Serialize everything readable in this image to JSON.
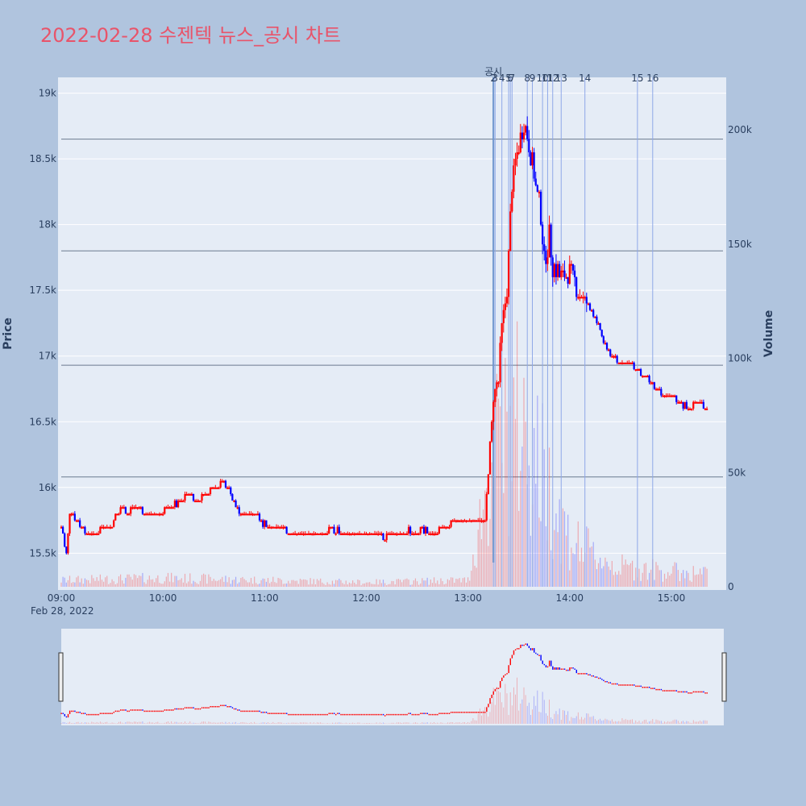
{
  "title": "2022-02-28 수젠텍 뉴스_공시 차트",
  "colors": {
    "background": "#b0c4de",
    "plot_bg": "#e5ecf6",
    "title": "#e8546a",
    "up": "#ff0000",
    "down": "#0000ff",
    "news_line": "#8fa8e8",
    "disclosure_line": "#4a7fb0"
  },
  "chart_data": {
    "type": "candlestick",
    "date_label": "Feb 28, 2022",
    "y_label": "Price",
    "y2_label": "Volume",
    "y_range": [
      15220,
      19120
    ],
    "y2_range": [
      0,
      223000
    ],
    "x_range": [
      "09:00",
      "15:30"
    ],
    "y_ticks": [
      15500,
      16000,
      16500,
      17000,
      17500,
      18000,
      18500,
      19000
    ],
    "y_tick_labels": [
      "15.5k",
      "16k",
      "16.5k",
      "17k",
      "17.5k",
      "18k",
      "18.5k",
      "19k"
    ],
    "y2_ticks": [
      0,
      50000,
      100000,
      150000,
      200000
    ],
    "y2_tick_labels": [
      "0",
      "50k",
      "100k",
      "150k",
      "200k"
    ],
    "x_ticks": [
      "09:00",
      "10:00",
      "11:00",
      "12:00",
      "13:00",
      "14:00",
      "15:00"
    ],
    "disclosure": {
      "label": "공시",
      "time": "13:15"
    },
    "news_markers": [
      {
        "label": "2",
        "time": "13:15"
      },
      {
        "label": "3",
        "time": "13:16"
      },
      {
        "label": "4",
        "time": "13:20"
      },
      {
        "label": "5",
        "time": "13:24"
      },
      {
        "label": "6",
        "time": "13:25"
      },
      {
        "label": "7",
        "time": "13:26"
      },
      {
        "label": "8",
        "time": "13:35"
      },
      {
        "label": "9",
        "time": "13:38"
      },
      {
        "label": "10",
        "time": "13:44"
      },
      {
        "label": "11",
        "time": "13:47"
      },
      {
        "label": "12",
        "time": "13:50"
      },
      {
        "label": "13",
        "time": "13:55"
      },
      {
        "label": "14",
        "time": "14:09"
      },
      {
        "label": "15",
        "time": "14:40"
      },
      {
        "label": "16",
        "time": "14:49"
      }
    ],
    "price_path": [
      [
        "09:00",
        15700
      ],
      [
        "09:03",
        15500
      ],
      [
        "09:05",
        15800
      ],
      [
        "09:10",
        15750
      ],
      [
        "09:15",
        15650
      ],
      [
        "09:20",
        15650
      ],
      [
        "09:25",
        15700
      ],
      [
        "09:30",
        15720
      ],
      [
        "09:35",
        15850
      ],
      [
        "09:40",
        15820
      ],
      [
        "09:45",
        15850
      ],
      [
        "09:50",
        15800
      ],
      [
        "09:55",
        15800
      ],
      [
        "10:00",
        15820
      ],
      [
        "10:05",
        15850
      ],
      [
        "10:10",
        15900
      ],
      [
        "10:15",
        15950
      ],
      [
        "10:20",
        15900
      ],
      [
        "10:25",
        15950
      ],
      [
        "10:30",
        16000
      ],
      [
        "10:35",
        16050
      ],
      [
        "10:40",
        15950
      ],
      [
        "10:45",
        15800
      ],
      [
        "10:50",
        15800
      ],
      [
        "10:55",
        15800
      ],
      [
        "11:00",
        15720
      ],
      [
        "11:05",
        15700
      ],
      [
        "11:10",
        15700
      ],
      [
        "11:15",
        15650
      ],
      [
        "11:20",
        15650
      ],
      [
        "11:30",
        15650
      ],
      [
        "11:40",
        15680
      ],
      [
        "11:50",
        15650
      ],
      [
        "12:00",
        15650
      ],
      [
        "12:10",
        15620
      ],
      [
        "12:20",
        15650
      ],
      [
        "12:30",
        15680
      ],
      [
        "12:40",
        15650
      ],
      [
        "12:50",
        15720
      ],
      [
        "13:00",
        15750
      ],
      [
        "13:05",
        15760
      ],
      [
        "13:10",
        15750
      ],
      [
        "13:15",
        16700
      ],
      [
        "13:18",
        16800
      ],
      [
        "13:20",
        17200
      ],
      [
        "13:23",
        17500
      ],
      [
        "13:26",
        18300
      ],
      [
        "13:30",
        18600
      ],
      [
        "13:33",
        18800
      ],
      [
        "13:36",
        18600
      ],
      [
        "13:40",
        18300
      ],
      [
        "13:43",
        18100
      ],
      [
        "13:45",
        17700
      ],
      [
        "13:48",
        17900
      ],
      [
        "13:50",
        17700
      ],
      [
        "13:55",
        17600
      ],
      [
        "14:00",
        17650
      ],
      [
        "14:05",
        17500
      ],
      [
        "14:10",
        17400
      ],
      [
        "14:15",
        17300
      ],
      [
        "14:20",
        17100
      ],
      [
        "14:25",
        17000
      ],
      [
        "14:30",
        16950
      ],
      [
        "14:35",
        16950
      ],
      [
        "14:40",
        16900
      ],
      [
        "14:45",
        16850
      ],
      [
        "14:50",
        16750
      ],
      [
        "14:55",
        16700
      ],
      [
        "15:00",
        16700
      ],
      [
        "15:05",
        16650
      ],
      [
        "15:10",
        16600
      ],
      [
        "15:15",
        16650
      ],
      [
        "15:20",
        16600
      ]
    ],
    "volume_levels": [
      [
        "09:00",
        3000
      ],
      [
        "10:00",
        4000
      ],
      [
        "11:00",
        3000
      ],
      [
        "12:00",
        2000
      ],
      [
        "13:00",
        3000
      ],
      [
        "13:15",
        60000
      ],
      [
        "13:30",
        75000
      ],
      [
        "13:40",
        60000
      ],
      [
        "13:50",
        40000
      ],
      [
        "14:00",
        22000
      ],
      [
        "14:15",
        14000
      ],
      [
        "14:30",
        9000
      ],
      [
        "15:00",
        7000
      ],
      [
        "15:20",
        6000
      ]
    ],
    "hlines": [
      16080,
      16930,
      17800,
      18650
    ]
  }
}
